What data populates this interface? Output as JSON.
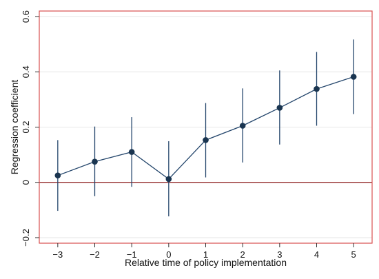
{
  "chart_data": {
    "type": "line",
    "title": "",
    "xlabel": "Relative time of policy implementation",
    "ylabel": "Regression coefficient",
    "x": [
      -3,
      -2,
      -1,
      0,
      1,
      2,
      3,
      4,
      5
    ],
    "x_tick_labels": [
      "−3",
      "−2",
      "−1",
      "0",
      "1",
      "2",
      "3",
      "4",
      "5"
    ],
    "y_ticks": [
      -0.2,
      0,
      0.2,
      0.4,
      0.6
    ],
    "y_tick_labels": [
      "−0.2",
      "0",
      "0.2",
      "0.4",
      "0.6"
    ],
    "xlim": [
      -3.5,
      5.5
    ],
    "ylim": [
      -0.22,
      0.62
    ],
    "reference_line_y": 0,
    "grid": "horizontal",
    "series": [
      {
        "values": [
          0.025,
          0.075,
          0.11,
          0.012,
          0.153,
          0.205,
          0.27,
          0.338,
          0.382
        ],
        "ci_low": [
          -0.103,
          -0.05,
          -0.016,
          -0.123,
          0.018,
          0.072,
          0.137,
          0.205,
          0.247
        ],
        "ci_high": [
          0.153,
          0.202,
          0.236,
          0.149,
          0.287,
          0.34,
          0.405,
          0.472,
          0.517
        ]
      }
    ],
    "colors": {
      "plot_border": "#d94f4f",
      "reference_line": "#8b1a1a",
      "marker": "#1a3550",
      "line": "#23456b",
      "ci": "#23456b",
      "grid": "#e6e6e6"
    }
  }
}
